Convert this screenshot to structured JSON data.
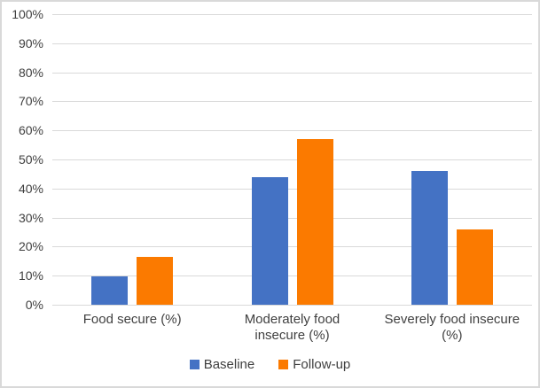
{
  "chart_data": {
    "type": "bar",
    "title": "",
    "xlabel": "",
    "ylabel": "",
    "categories": [
      "Food secure (%)",
      "Moderately food insecure (%)",
      "Severely food insecure (%)"
    ],
    "series": [
      {
        "name": "Baseline",
        "color": "#4472C4",
        "values": [
          9.8,
          44,
          46
        ]
      },
      {
        "name": "Follow-up",
        "color": "#FB7A00",
        "values": [
          16.5,
          57,
          26
        ]
      }
    ],
    "ylim": [
      0,
      100
    ],
    "y_ticks": [
      "0%",
      "10%",
      "20%",
      "30%",
      "40%",
      "50%",
      "60%",
      "70%",
      "80%",
      "90%",
      "100%"
    ],
    "grid": true,
    "legend_position": "bottom",
    "colors": {
      "gridline": "#D9D9D9",
      "frame_border": "#D9D9D9",
      "label_text": "#404040",
      "background": "#FFFFFF"
    }
  }
}
